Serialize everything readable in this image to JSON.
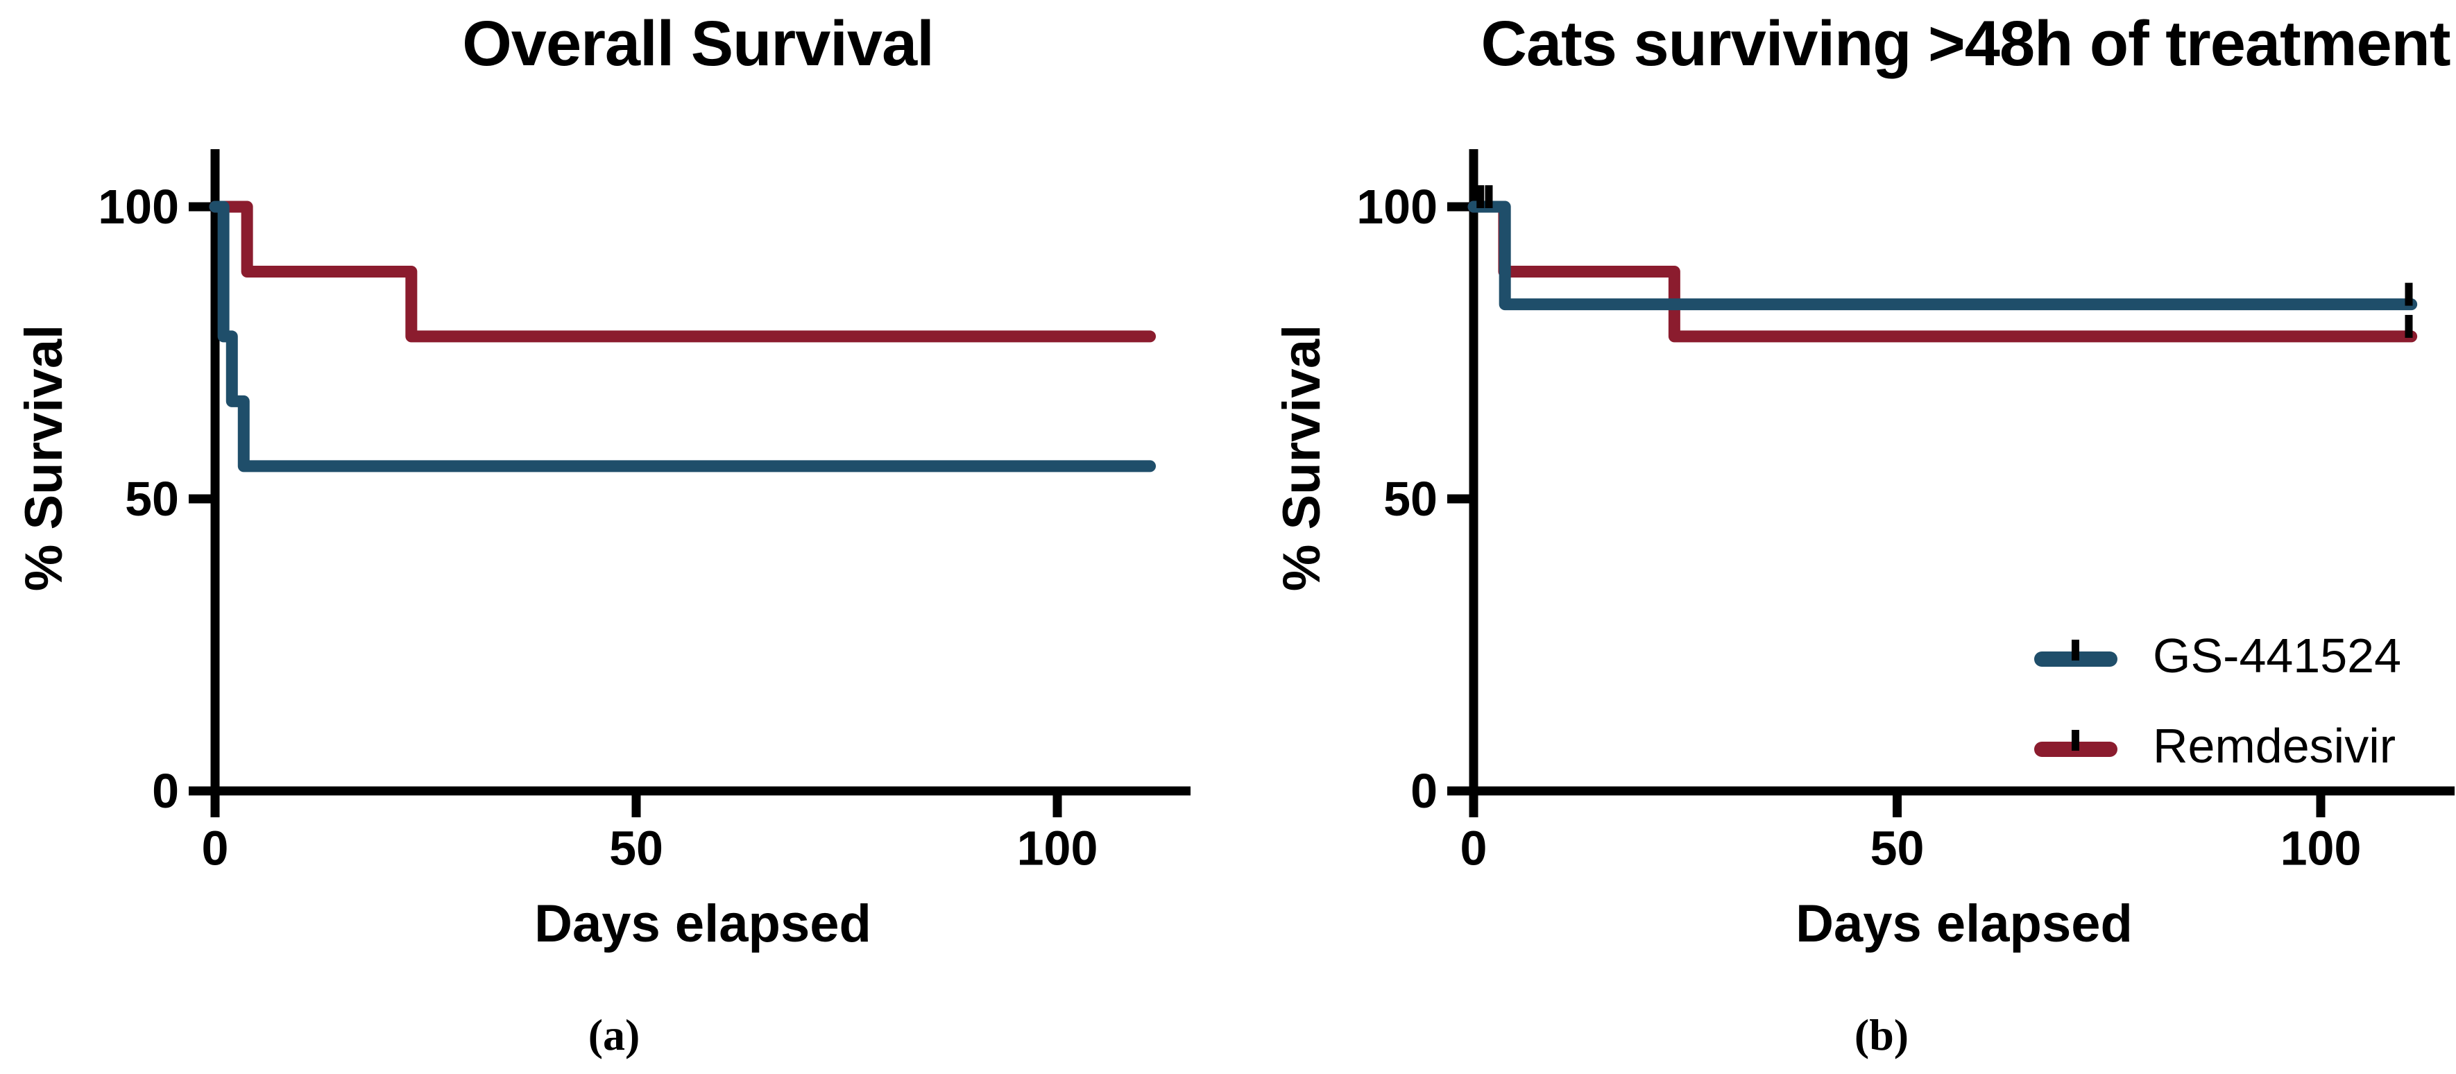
{
  "figure": {
    "captions": {
      "a": "(a)",
      "b": "(b)"
    },
    "axis_color": "#000000",
    "background": "#ffffff"
  },
  "chart_data": [
    {
      "type": "line",
      "subtype": "kaplan-meier-step",
      "title": "Overall Survival",
      "xlabel": "Days elapsed",
      "ylabel": "% Survival",
      "xlim": [
        0,
        116
      ],
      "ylim": [
        0,
        110
      ],
      "x_ticks": [
        0,
        50,
        100
      ],
      "y_ticks": [
        0,
        50,
        100
      ],
      "grid": false,
      "legend_position": "none",
      "series": [
        {
          "name": "GS-441524",
          "color": "#1F4E6A",
          "steps": [
            [
              0,
              100
            ],
            [
              1,
              100
            ],
            [
              1,
              77.8
            ],
            [
              2,
              77.8
            ],
            [
              2,
              66.7
            ],
            [
              3.4,
              66.7
            ],
            [
              3.4,
              55.6
            ],
            [
              111,
              55.6
            ]
          ],
          "censors": []
        },
        {
          "name": "Remdesivir",
          "color": "#8B1C2E",
          "steps": [
            [
              0,
              100
            ],
            [
              3.8,
              100
            ],
            [
              3.8,
              88.9
            ],
            [
              23.3,
              88.9
            ],
            [
              23.3,
              77.8
            ],
            [
              111,
              77.8
            ]
          ],
          "censors": []
        }
      ]
    },
    {
      "type": "line",
      "subtype": "kaplan-meier-step",
      "title": "Cats surviving >48h of treatment",
      "xlabel": "Days elapsed",
      "ylabel": "% Survival",
      "xlim": [
        0,
        116
      ],
      "ylim": [
        0,
        110
      ],
      "x_ticks": [
        0,
        50,
        100
      ],
      "y_ticks": [
        0,
        50,
        100
      ],
      "grid": false,
      "legend_position": "inside-right",
      "series": [
        {
          "name": "GS-441524",
          "color": "#1F4E6A",
          "steps": [
            [
              0,
              100
            ],
            [
              3.7,
              100
            ],
            [
              3.7,
              83.3
            ],
            [
              110.7,
              83.3
            ]
          ],
          "censors": [
            [
              0.8,
              100
            ],
            [
              1.8,
              100
            ],
            [
              110.4,
              83.3
            ]
          ]
        },
        {
          "name": "Remdesivir",
          "color": "#8B1C2E",
          "steps": [
            [
              0,
              100
            ],
            [
              3.6,
              100
            ],
            [
              3.6,
              88.9
            ],
            [
              23.7,
              88.9
            ],
            [
              23.7,
              77.8
            ],
            [
              110.7,
              77.8
            ]
          ],
          "censors": [
            [
              110.4,
              77.8
            ]
          ]
        }
      ]
    }
  ]
}
